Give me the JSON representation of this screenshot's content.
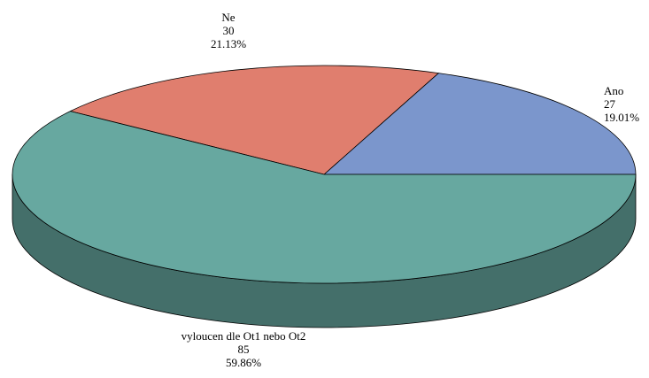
{
  "chart_data": {
    "type": "pie3d",
    "categories": [
      "Ano",
      "Ne",
      "vyloucen dle Ot1 nebo Ot2"
    ],
    "values": [
      27,
      30,
      85
    ],
    "percent_labels": [
      "19.01%",
      "21.13%",
      "59.86%"
    ],
    "colors": [
      "#7b96cc",
      "#e07e6e",
      "#67a8a0"
    ]
  }
}
